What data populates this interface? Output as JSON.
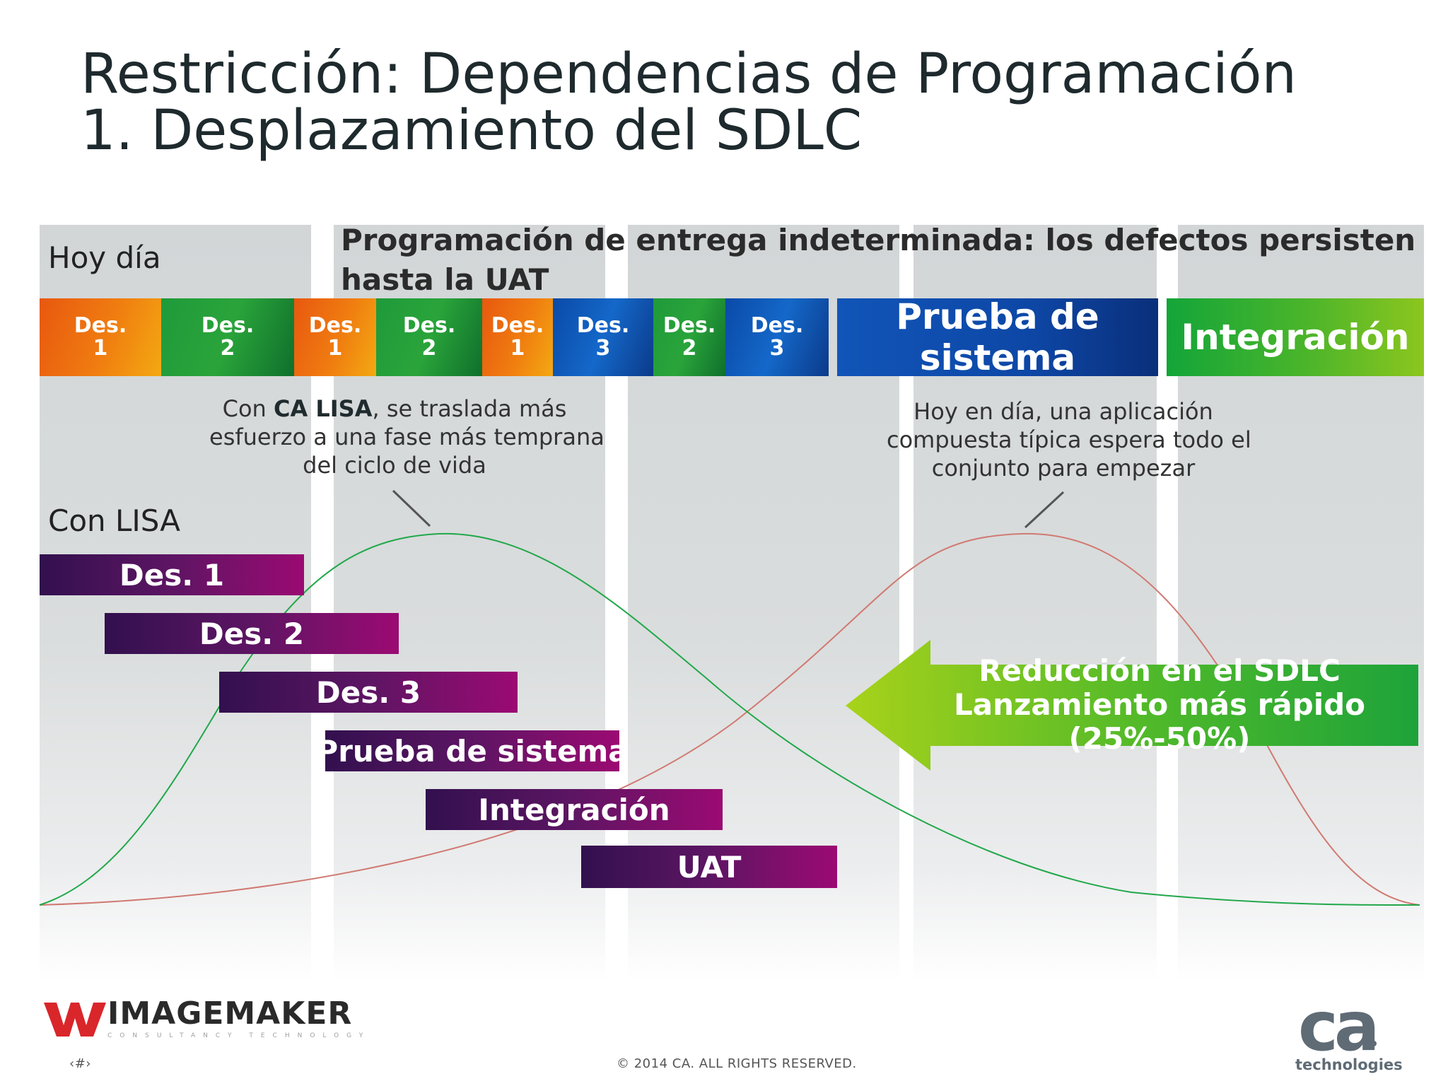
{
  "title": {
    "line1": "Restricción: Dependencias de Programación",
    "line2": "1. Desplazamiento del SDLC"
  },
  "today": {
    "label": "Hoy día",
    "headline": "Programación de entrega indeterminada: los defectos persisten hasta la UAT",
    "segments": [
      {
        "label": "Des.",
        "number": "1",
        "color": "orange"
      },
      {
        "label": "Des.",
        "number": "2",
        "color": "green"
      },
      {
        "label": "Des.",
        "number": "1",
        "color": "orange"
      },
      {
        "label": "Des.",
        "number": "2",
        "color": "green"
      },
      {
        "label": "Des.",
        "number": "1",
        "color": "orange"
      },
      {
        "label": "Des.",
        "number": "3",
        "color": "blue"
      },
      {
        "label": "Des.",
        "number": "2",
        "color": "green"
      },
      {
        "label": "Des.",
        "number": "3",
        "color": "blue"
      }
    ],
    "system_test": "Prueba de sistema",
    "integration": "Integración"
  },
  "notes": {
    "left_pre": "Con",
    "left_bold": "CA LISA",
    "left_post": ", se traslada más",
    "left_line2": "esfuerzo a una fase más temprana",
    "left_line3": "del ciclo de vida",
    "right_line1": "Hoy en día, una aplicación",
    "right_line2": "compuesta típica espera todo el",
    "right_line3": "conjunto para empezar"
  },
  "with_lisa": {
    "label": "Con LISA",
    "bars": [
      "Des. 1",
      "Des. 2",
      "Des. 3",
      "Prueba de sistema",
      "Integración",
      "UAT"
    ]
  },
  "arrow": {
    "line1": "Reducción en el SDLC",
    "line2": "Lanzamiento más rápido",
    "line3": "(25%-50%)"
  },
  "colors": {
    "curve_left": "#21a84a",
    "curve_right": "#d07a72",
    "arrow": "#6cc22a"
  },
  "footer": {
    "page": "‹#›",
    "copyright": "© 2014 CA. ALL RIGHTS RESERVED."
  },
  "logos": {
    "imagemaker": "IMAGEMAKER",
    "imagemaker_sub": "CONSULTANCY TECHNOLOGY",
    "ca": "ca",
    "ca_sub": "technologies"
  }
}
